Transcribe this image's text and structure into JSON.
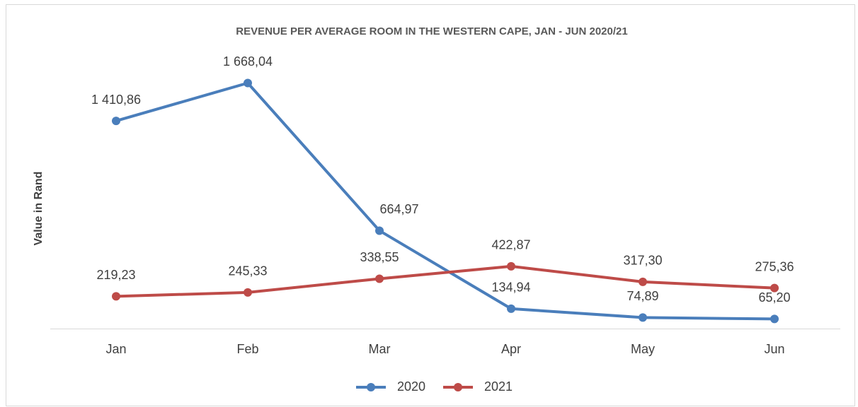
{
  "chart_data": {
    "type": "line",
    "title": "REVENUE PER AVERAGE ROOM IN THE WESTERN CAPE, JAN - JUN 2020/21",
    "y_label": "Value in Rand",
    "categories": [
      "Jan",
      "Feb",
      "Mar",
      "Apr",
      "May",
      "Jun"
    ],
    "series": [
      {
        "name": "2020",
        "color": "#4a7ebb",
        "values": [
          1410.86,
          1668.04,
          664.97,
          134.94,
          74.89,
          65.2
        ],
        "value_labels": [
          "1 410,86",
          "1 668,04",
          "664,97",
          "134,94",
          "74,89",
          "65,20"
        ]
      },
      {
        "name": "2021",
        "color": "#be4b48",
        "values": [
          219.23,
          245.33,
          338.55,
          422.87,
          317.3,
          275.36
        ],
        "value_labels": [
          "219,23",
          "245,33",
          "338,55",
          "422,87",
          "317,30",
          "275,36"
        ]
      }
    ],
    "ylim": [
      0,
      1800
    ],
    "legend": "bottom"
  }
}
